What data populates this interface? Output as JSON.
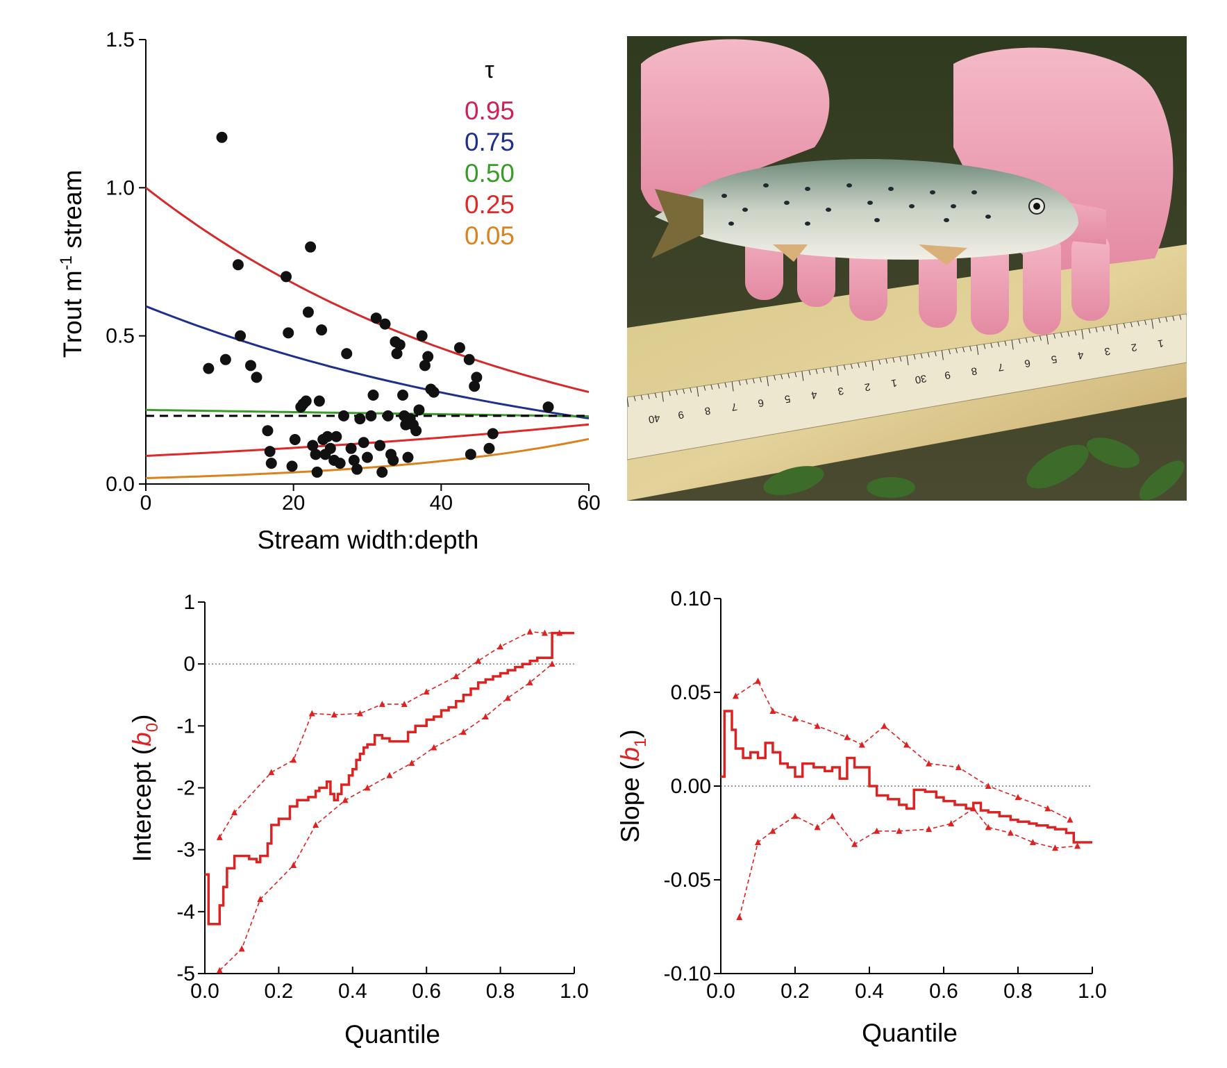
{
  "chart_data": [
    {
      "type": "scatter",
      "panel": "top-left",
      "xlabel": "Stream width:depth",
      "ylabel": "Trout m",
      "ylabel_sup": "-1",
      "ylabel_suffix": " stream",
      "xlim": [
        0,
        60
      ],
      "ylim": [
        0,
        1.5
      ],
      "xticks": [
        "0",
        "20",
        "40",
        "60"
      ],
      "yticks": [
        "0.0",
        "0.5",
        "1.0",
        "1.5"
      ],
      "legend_title": "τ",
      "legend_placement": "top-right",
      "points": [
        [
          8.5,
          0.39
        ],
        [
          10.3,
          1.17
        ],
        [
          10.8,
          0.42
        ],
        [
          12.5,
          0.74
        ],
        [
          12.8,
          0.5
        ],
        [
          14.2,
          0.4
        ],
        [
          15,
          0.36
        ],
        [
          16.5,
          0.18
        ],
        [
          16.8,
          0.11
        ],
        [
          17,
          0.07
        ],
        [
          19,
          0.7
        ],
        [
          19.3,
          0.51
        ],
        [
          19.8,
          0.06
        ],
        [
          20.2,
          0.15
        ],
        [
          21,
          0.26
        ],
        [
          21.3,
          0.27
        ],
        [
          21.7,
          0.28
        ],
        [
          22,
          0.58
        ],
        [
          22.3,
          0.8
        ],
        [
          22.6,
          0.13
        ],
        [
          23,
          0.1
        ],
        [
          23.2,
          0.04
        ],
        [
          23.5,
          0.28
        ],
        [
          23.8,
          0.52
        ],
        [
          24,
          0.15
        ],
        [
          24.3,
          0.1
        ],
        [
          24.6,
          0.16
        ],
        [
          25,
          0.12
        ],
        [
          25.5,
          0.08
        ],
        [
          25.8,
          0.16
        ],
        [
          26.3,
          0.07
        ],
        [
          26.8,
          0.23
        ],
        [
          27.2,
          0.44
        ],
        [
          27.8,
          0.12
        ],
        [
          28.2,
          0.08
        ],
        [
          28.6,
          0.05
        ],
        [
          29,
          0.22
        ],
        [
          29.5,
          0.14
        ],
        [
          30,
          0.09
        ],
        [
          30.5,
          0.23
        ],
        [
          30.8,
          0.3
        ],
        [
          31.2,
          0.56
        ],
        [
          31.7,
          0.13
        ],
        [
          32,
          0.04
        ],
        [
          32.4,
          0.54
        ],
        [
          32.8,
          0.23
        ],
        [
          33.2,
          0.1
        ],
        [
          33.5,
          0.08
        ],
        [
          33.8,
          0.48
        ],
        [
          34,
          0.44
        ],
        [
          34.4,
          0.47
        ],
        [
          34.8,
          0.3
        ],
        [
          35,
          0.23
        ],
        [
          35.2,
          0.2
        ],
        [
          35.5,
          0.09
        ],
        [
          35.8,
          0.22
        ],
        [
          36.2,
          0.2
        ],
        [
          36.6,
          0.18
        ],
        [
          37,
          0.25
        ],
        [
          37.4,
          0.5
        ],
        [
          37.8,
          0.4
        ],
        [
          38.2,
          0.43
        ],
        [
          38.6,
          0.32
        ],
        [
          39,
          0.31
        ],
        [
          42.5,
          0.46
        ],
        [
          43.8,
          0.42
        ],
        [
          44,
          0.1
        ],
        [
          44.5,
          0.33
        ],
        [
          44.8,
          0.36
        ],
        [
          46.5,
          0.12
        ],
        [
          47,
          0.17
        ],
        [
          54.5,
          0.26
        ]
      ],
      "series": [
        {
          "name": "0.95",
          "color": "#d42a2a",
          "label_color": "#cc2255",
          "a": 1.0,
          "b": -0.0195
        },
        {
          "name": "0.75",
          "color": "#1f2f8a",
          "label_color": "#1f2f8a",
          "a": 0.6,
          "b": -0.0166
        },
        {
          "name": "0.50",
          "color": "#3a9a2a",
          "label_color": "#3a9a2a",
          "a": 0.25,
          "b": -0.0015
        },
        {
          "name": "0.25",
          "color": "#e02828",
          "label_color": "#e02828",
          "a": 0.095,
          "b": 0.0125
        },
        {
          "name": "0.05",
          "color": "#d9821e",
          "label_color": "#d9821e",
          "a": 0.02,
          "b": 0.0338
        }
      ],
      "dashed_reference": {
        "y": 0.23,
        "color": "#000000"
      }
    },
    {
      "type": "line",
      "panel": "bottom-left",
      "xlabel": "Quantile",
      "ylabel": "Intercept (",
      "ylabel_var": "b",
      "ylabel_sub": "0",
      "ylabel_close": ")",
      "xlim": [
        0,
        1
      ],
      "ylim": [
        -5,
        1
      ],
      "xticks": [
        "0.0",
        "0.2",
        "0.4",
        "0.6",
        "0.8",
        "1.0"
      ],
      "yticks": [
        "-5",
        "-4",
        "-3",
        "-2",
        "-1",
        "0",
        "1"
      ],
      "reference_line": 0,
      "color": "#dd2222",
      "estimate": [
        [
          0,
          -3.4
        ],
        [
          0.01,
          -4.2
        ],
        [
          0.04,
          -3.9
        ],
        [
          0.05,
          -3.6
        ],
        [
          0.06,
          -3.3
        ],
        [
          0.08,
          -3.1
        ],
        [
          0.12,
          -3.15
        ],
        [
          0.14,
          -3.2
        ],
        [
          0.15,
          -3.1
        ],
        [
          0.17,
          -2.9
        ],
        [
          0.18,
          -2.6
        ],
        [
          0.2,
          -2.5
        ],
        [
          0.22,
          -2.5
        ],
        [
          0.23,
          -2.3
        ],
        [
          0.25,
          -2.2
        ],
        [
          0.28,
          -2.15
        ],
        [
          0.3,
          -2.05
        ],
        [
          0.31,
          -2.0
        ],
        [
          0.33,
          -1.9
        ],
        [
          0.34,
          -2.1
        ],
        [
          0.35,
          -2.2
        ],
        [
          0.36,
          -2.1
        ],
        [
          0.37,
          -1.95
        ],
        [
          0.39,
          -1.8
        ],
        [
          0.4,
          -1.7
        ],
        [
          0.41,
          -1.55
        ],
        [
          0.42,
          -1.45
        ],
        [
          0.43,
          -1.35
        ],
        [
          0.44,
          -1.3
        ],
        [
          0.46,
          -1.15
        ],
        [
          0.48,
          -1.2
        ],
        [
          0.5,
          -1.25
        ],
        [
          0.52,
          -1.25
        ],
        [
          0.55,
          -1.1
        ],
        [
          0.57,
          -1.0
        ],
        [
          0.6,
          -0.9
        ],
        [
          0.62,
          -0.85
        ],
        [
          0.64,
          -0.75
        ],
        [
          0.66,
          -0.7
        ],
        [
          0.68,
          -0.6
        ],
        [
          0.7,
          -0.5
        ],
        [
          0.72,
          -0.4
        ],
        [
          0.74,
          -0.3
        ],
        [
          0.76,
          -0.25
        ],
        [
          0.78,
          -0.2
        ],
        [
          0.8,
          -0.15
        ],
        [
          0.82,
          -0.1
        ],
        [
          0.84,
          -0.05
        ],
        [
          0.86,
          0.0
        ],
        [
          0.88,
          0.05
        ],
        [
          0.9,
          0.1
        ],
        [
          0.92,
          0.1
        ],
        [
          0.94,
          0.5
        ],
        [
          1.0,
          0.5
        ]
      ],
      "upper": [
        [
          0.04,
          -2.8
        ],
        [
          0.08,
          -2.4
        ],
        [
          0.18,
          -1.75
        ],
        [
          0.24,
          -1.55
        ],
        [
          0.29,
          -0.8
        ],
        [
          0.35,
          -0.82
        ],
        [
          0.42,
          -0.8
        ],
        [
          0.48,
          -0.65
        ],
        [
          0.54,
          -0.65
        ],
        [
          0.6,
          -0.45
        ],
        [
          0.68,
          -0.2
        ],
        [
          0.74,
          0.05
        ],
        [
          0.8,
          0.28
        ],
        [
          0.88,
          0.52
        ],
        [
          0.92,
          0.5
        ],
        [
          0.96,
          0.5
        ]
      ],
      "lower": [
        [
          0.04,
          -4.95
        ],
        [
          0.1,
          -4.6
        ],
        [
          0.15,
          -3.8
        ],
        [
          0.24,
          -3.25
        ],
        [
          0.3,
          -2.6
        ],
        [
          0.38,
          -2.2
        ],
        [
          0.44,
          -2.0
        ],
        [
          0.5,
          -1.8
        ],
        [
          0.56,
          -1.6
        ],
        [
          0.62,
          -1.35
        ],
        [
          0.7,
          -1.1
        ],
        [
          0.76,
          -0.85
        ],
        [
          0.82,
          -0.55
        ],
        [
          0.88,
          -0.3
        ],
        [
          0.94,
          0.0
        ]
      ]
    },
    {
      "type": "line",
      "panel": "bottom-right",
      "xlabel": "Quantile",
      "ylabel": "Slope (",
      "ylabel_var": "b",
      "ylabel_sub": "1",
      "ylabel_close": ")",
      "xlim": [
        0,
        1
      ],
      "ylim": [
        -0.1,
        0.1
      ],
      "xticks": [
        "0.0",
        "0.2",
        "0.4",
        "0.6",
        "0.8",
        "1.0"
      ],
      "yticks": [
        "-0.10",
        "-0.05",
        "0.00",
        "0.05",
        "0.10"
      ],
      "reference_line": 0,
      "color": "#dd2222",
      "estimate": [
        [
          0,
          0.005
        ],
        [
          0.01,
          0.04
        ],
        [
          0.03,
          0.03
        ],
        [
          0.04,
          0.02
        ],
        [
          0.06,
          0.015
        ],
        [
          0.08,
          0.018
        ],
        [
          0.1,
          0.015
        ],
        [
          0.12,
          0.023
        ],
        [
          0.14,
          0.018
        ],
        [
          0.16,
          0.012
        ],
        [
          0.18,
          0.01
        ],
        [
          0.2,
          0.005
        ],
        [
          0.22,
          0.012
        ],
        [
          0.25,
          0.01
        ],
        [
          0.28,
          0.008
        ],
        [
          0.3,
          0.01
        ],
        [
          0.32,
          0.004
        ],
        [
          0.34,
          0.015
        ],
        [
          0.36,
          0.01
        ],
        [
          0.38,
          0.01
        ],
        [
          0.4,
          0.0
        ],
        [
          0.42,
          -0.005
        ],
        [
          0.45,
          -0.007
        ],
        [
          0.48,
          -0.01
        ],
        [
          0.5,
          -0.012
        ],
        [
          0.52,
          -0.002
        ],
        [
          0.55,
          -0.003
        ],
        [
          0.58,
          -0.006
        ],
        [
          0.6,
          -0.008
        ],
        [
          0.63,
          -0.01
        ],
        [
          0.66,
          -0.012
        ],
        [
          0.68,
          -0.009
        ],
        [
          0.7,
          -0.013
        ],
        [
          0.72,
          -0.014
        ],
        [
          0.75,
          -0.016
        ],
        [
          0.78,
          -0.018
        ],
        [
          0.8,
          -0.019
        ],
        [
          0.83,
          -0.02
        ],
        [
          0.85,
          -0.021
        ],
        [
          0.88,
          -0.022
        ],
        [
          0.9,
          -0.023
        ],
        [
          0.93,
          -0.025
        ],
        [
          0.95,
          -0.03
        ],
        [
          1.0,
          -0.03
        ]
      ],
      "upper": [
        [
          0.04,
          0.048
        ],
        [
          0.1,
          0.056
        ],
        [
          0.14,
          0.04
        ],
        [
          0.2,
          0.036
        ],
        [
          0.26,
          0.032
        ],
        [
          0.34,
          0.026
        ],
        [
          0.38,
          0.022
        ],
        [
          0.44,
          0.032
        ],
        [
          0.5,
          0.022
        ],
        [
          0.56,
          0.012
        ],
        [
          0.64,
          0.01
        ],
        [
          0.72,
          0.0
        ],
        [
          0.8,
          -0.006
        ],
        [
          0.88,
          -0.012
        ],
        [
          0.94,
          -0.018
        ]
      ],
      "lower": [
        [
          0.05,
          -0.07
        ],
        [
          0.1,
          -0.03
        ],
        [
          0.14,
          -0.024
        ],
        [
          0.2,
          -0.016
        ],
        [
          0.26,
          -0.022
        ],
        [
          0.3,
          -0.016
        ],
        [
          0.36,
          -0.031
        ],
        [
          0.42,
          -0.024
        ],
        [
          0.48,
          -0.024
        ],
        [
          0.56,
          -0.023
        ],
        [
          0.62,
          -0.02
        ],
        [
          0.68,
          -0.012
        ],
        [
          0.72,
          -0.022
        ],
        [
          0.78,
          -0.025
        ],
        [
          0.84,
          -0.03
        ],
        [
          0.9,
          -0.033
        ],
        [
          0.96,
          -0.032
        ]
      ]
    }
  ],
  "photo": {
    "ruler_labels": [
      "1",
      "2",
      "3",
      "4",
      "5",
      "6",
      "7",
      "8",
      "9",
      "30",
      "1",
      "2",
      "3",
      "4",
      "5",
      "6",
      "7",
      "8",
      "9",
      "40"
    ]
  }
}
